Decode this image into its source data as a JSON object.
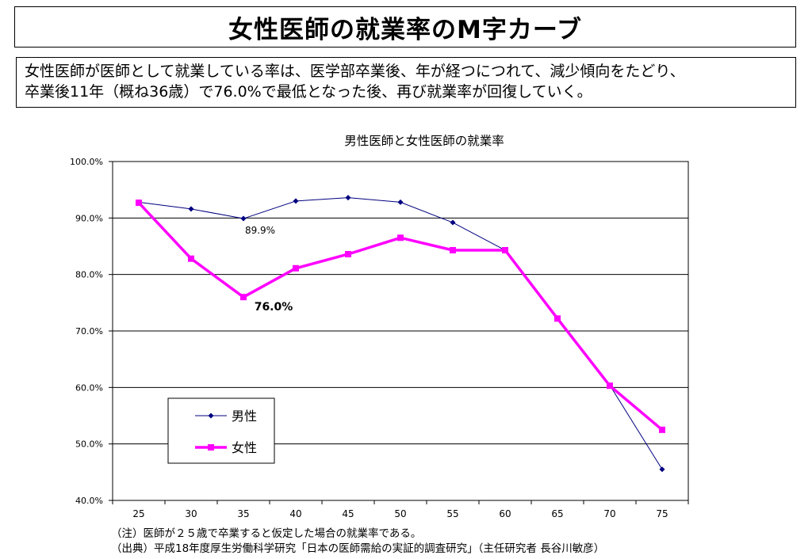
{
  "header": {
    "title": "女性医師の就業率のM字カーブ"
  },
  "summary": {
    "line1": "女性医師が医師として就業している率は、医学部卒業後、年が経つにつれて、減少傾向をたどり、",
    "line2": "卒業後11年（概ね36歳）で76.0%で最低となった後、再び就業率が回復していく。"
  },
  "chart_data": {
    "type": "line",
    "title": "男性医師と女性医師の就業率",
    "xlabel": "",
    "ylabel": "",
    "categories": [
      "25",
      "30",
      "35",
      "40",
      "45",
      "50",
      "55",
      "60",
      "65",
      "70",
      "75"
    ],
    "ylim": [
      40,
      100
    ],
    "yticks": [
      "40.0%",
      "50.0%",
      "60.0%",
      "70.0%",
      "80.0%",
      "90.0%",
      "100.0%"
    ],
    "grid": true,
    "legend_position": "bottom-left",
    "series": [
      {
        "name": "男性",
        "color": "#000080",
        "values": [
          92.8,
          91.6,
          89.9,
          93.0,
          93.6,
          92.8,
          89.2,
          84.3,
          72.2,
          60.4,
          45.5
        ]
      },
      {
        "name": "女性",
        "color": "#ff00ff",
        "values": [
          92.7,
          82.8,
          76.0,
          81.1,
          83.6,
          86.5,
          84.3,
          84.3,
          72.2,
          60.3,
          52.5
        ]
      }
    ],
    "annotations": [
      {
        "text": "89.9%",
        "series": 0,
        "index": 2
      },
      {
        "text": "76.0%",
        "series": 1,
        "index": 2
      }
    ]
  },
  "footnotes": {
    "note": "（注）医師が２５歳で卒業すると仮定した場合の就業率である。",
    "source": "（出典）平成18年度厚生労働科学研究「日本の医師需給の実証的調査研究」（主任研究者 長谷川敏彦）"
  }
}
